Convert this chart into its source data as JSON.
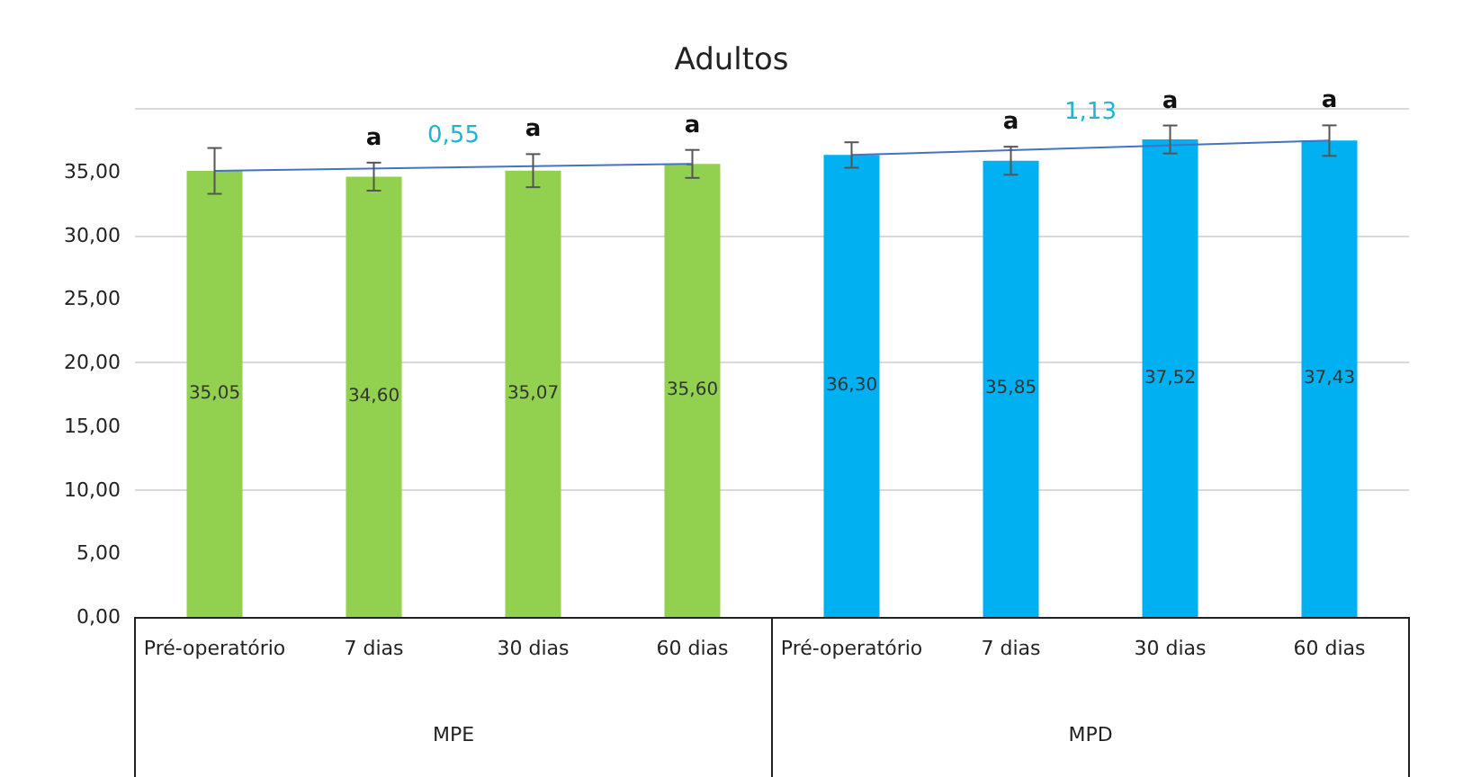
{
  "chart_data": {
    "type": "bar",
    "title": "Adultos",
    "categories": [
      "Pré-operatório",
      "7 dias",
      "30 dias",
      "60 dias",
      "Pré-operatório",
      "7 dias",
      "30 dias",
      "60 dias"
    ],
    "series": [
      {
        "color": "#92d050",
        "values": [
          35.05,
          34.6,
          35.07,
          35.6,
          null,
          null,
          null,
          null
        ],
        "errors": [
          1.8,
          1.1,
          1.3,
          1.1,
          null,
          null,
          null,
          null
        ],
        "value_labels": [
          "35,05",
          "34,60",
          "35,07",
          "35,60",
          null,
          null,
          null,
          null
        ]
      },
      {
        "color": "#00b0f0",
        "values": [
          null,
          null,
          null,
          null,
          36.3,
          35.85,
          37.52,
          37.43
        ],
        "errors": [
          null,
          null,
          null,
          null,
          1.0,
          1.1,
          1.1,
          1.2
        ],
        "value_labels": [
          null,
          null,
          null,
          null,
          "36,30",
          "35,85",
          "37,52",
          "37,43"
        ]
      },
      {
        "type": "line",
        "color": "#4472c4",
        "values": [
          35.05,
          null,
          null,
          35.6,
          null,
          null,
          null,
          null
        ]
      },
      {
        "type": "line",
        "color": "#4472c4",
        "values": [
          null,
          null,
          null,
          null,
          36.3,
          null,
          null,
          37.43
        ]
      }
    ],
    "annotations": [
      "a",
      "a",
      "a",
      "0,55",
      "a",
      "a",
      "a",
      "1,13",
      "MPE",
      "MPD"
    ],
    "ylim": [
      0,
      40
    ],
    "yticks": [
      {
        "value": 0,
        "label": "0,00"
      },
      {
        "value": 5,
        "label": "5,00"
      },
      {
        "value": 10,
        "label": "10,00"
      },
      {
        "value": 15,
        "label": "15,00"
      },
      {
        "value": 20,
        "label": "20,00"
      },
      {
        "value": 25,
        "label": "25,00"
      },
      {
        "value": 30,
        "label": "30,00"
      },
      {
        "value": 35,
        "label": "35,00"
      }
    ],
    "grid": "y"
  }
}
